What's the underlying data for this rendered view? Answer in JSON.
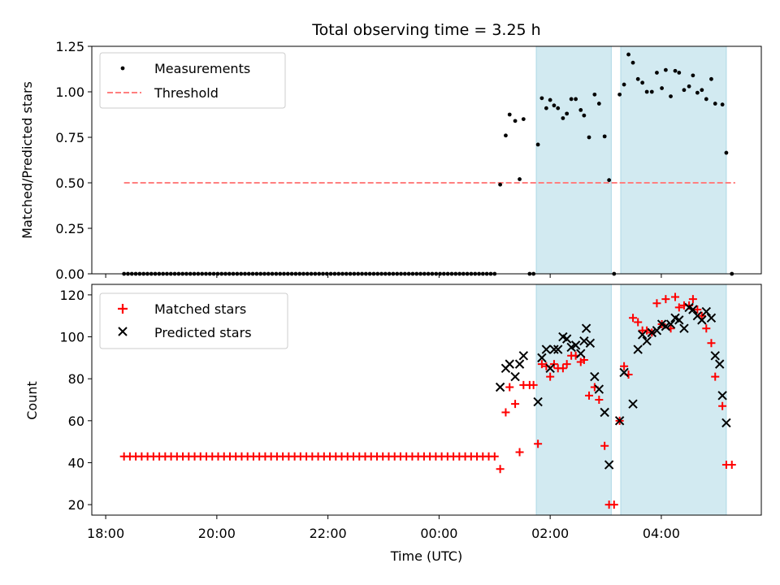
{
  "chart_data": {
    "type": "scatter",
    "title": "Total observing time = 3.25 h",
    "xlabel": "Time (UTC)",
    "x_unit": "hours relative to 00:00 UTC",
    "xlim": [
      -6.25,
      5.8
    ],
    "x_ticks": [
      {
        "value": -6,
        "label": "18:00"
      },
      {
        "value": -4,
        "label": "20:00"
      },
      {
        "value": -2,
        "label": "22:00"
      },
      {
        "value": 0,
        "label": "00:00"
      },
      {
        "value": 2,
        "label": "02:00"
      },
      {
        "value": 4,
        "label": "04:00"
      }
    ],
    "shaded_intervals": [
      [
        1.75,
        3.1
      ],
      [
        3.27,
        5.17
      ]
    ],
    "shade_color": "#add8e6",
    "top": {
      "ylabel": "Matched/Predicted stars",
      "ylim": [
        0,
        1.25
      ],
      "y_ticks": [
        0,
        0.25,
        0.5,
        0.75,
        1.0,
        1.25
      ],
      "y_tick_labels": [
        "0.00",
        "0.25",
        "0.50",
        "0.75",
        "1.00",
        "1.25"
      ],
      "legend": {
        "placement": "upper-left",
        "entries": [
          "Measurements",
          "Threshold"
        ]
      },
      "threshold": {
        "name": "Threshold",
        "y": 0.5,
        "x_range": [
          -5.67,
          5.33
        ],
        "color": "#ff7f7f"
      },
      "measurements": {
        "name": "Measurements",
        "color": "#000000",
        "zero_span": [
          -5.67,
          1.0
        ],
        "zero_count": 96,
        "points": [
          [
            1.1,
            0.49
          ],
          [
            1.2,
            0.76
          ],
          [
            1.27,
            0.875
          ],
          [
            1.37,
            0.84
          ],
          [
            1.45,
            0.52
          ],
          [
            1.52,
            0.85
          ],
          [
            1.63,
            0.0
          ],
          [
            1.7,
            0.0
          ],
          [
            1.78,
            0.71
          ],
          [
            1.85,
            0.965
          ],
          [
            1.93,
            0.91
          ],
          [
            2.0,
            0.955
          ],
          [
            2.07,
            0.925
          ],
          [
            2.14,
            0.91
          ],
          [
            2.23,
            0.855
          ],
          [
            2.3,
            0.88
          ],
          [
            2.38,
            0.96
          ],
          [
            2.46,
            0.96
          ],
          [
            2.55,
            0.9
          ],
          [
            2.61,
            0.87
          ],
          [
            2.7,
            0.75
          ],
          [
            2.8,
            0.985
          ],
          [
            2.88,
            0.935
          ],
          [
            2.98,
            0.755
          ],
          [
            3.06,
            0.515
          ],
          [
            3.15,
            0.0
          ],
          [
            3.25,
            0.985
          ],
          [
            3.33,
            1.04
          ],
          [
            3.41,
            1.205
          ],
          [
            3.49,
            1.16
          ],
          [
            3.58,
            1.07
          ],
          [
            3.66,
            1.05
          ],
          [
            3.74,
            1.0
          ],
          [
            3.83,
            1.0
          ],
          [
            3.92,
            1.105
          ],
          [
            4.01,
            1.02
          ],
          [
            4.08,
            1.12
          ],
          [
            4.17,
            0.975
          ],
          [
            4.25,
            1.115
          ],
          [
            4.32,
            1.105
          ],
          [
            4.41,
            1.01
          ],
          [
            4.5,
            1.03
          ],
          [
            4.57,
            1.09
          ],
          [
            4.65,
            0.995
          ],
          [
            4.73,
            1.01
          ],
          [
            4.81,
            0.96
          ],
          [
            4.9,
            1.07
          ],
          [
            4.97,
            0.935
          ],
          [
            5.1,
            0.93
          ],
          [
            5.17,
            0.665
          ],
          [
            5.27,
            0.0
          ]
        ]
      }
    },
    "bottom": {
      "ylabel": "Count",
      "ylim": [
        15,
        125
      ],
      "y_ticks": [
        20,
        40,
        60,
        80,
        100,
        120
      ],
      "y_tick_labels": [
        "20",
        "40",
        "60",
        "80",
        "100",
        "120"
      ],
      "legend": {
        "placement": "upper-left",
        "entries": [
          "Matched stars",
          "Predicted stars"
        ]
      },
      "matched": {
        "name": "Matched stars",
        "color": "#ff0000",
        "flat_value": 43,
        "flat_span": [
          -5.67,
          1.0
        ],
        "flat_count": 64,
        "points": [
          [
            1.1,
            37
          ],
          [
            1.2,
            64
          ],
          [
            1.27,
            76
          ],
          [
            1.37,
            68
          ],
          [
            1.45,
            45
          ],
          [
            1.52,
            77
          ],
          [
            1.63,
            77
          ],
          [
            1.7,
            77
          ],
          [
            1.78,
            49
          ],
          [
            1.85,
            87
          ],
          [
            1.93,
            86
          ],
          [
            2.0,
            81
          ],
          [
            2.07,
            87
          ],
          [
            2.14,
            85
          ],
          [
            2.23,
            85
          ],
          [
            2.3,
            87
          ],
          [
            2.38,
            91
          ],
          [
            2.46,
            91
          ],
          [
            2.55,
            88
          ],
          [
            2.61,
            89
          ],
          [
            2.7,
            72
          ],
          [
            2.8,
            76
          ],
          [
            2.88,
            70
          ],
          [
            2.98,
            48
          ],
          [
            3.06,
            20
          ],
          [
            3.15,
            20
          ],
          [
            3.25,
            60
          ],
          [
            3.33,
            86
          ],
          [
            3.41,
            82
          ],
          [
            3.49,
            109
          ],
          [
            3.58,
            107
          ],
          [
            3.66,
            103
          ],
          [
            3.74,
            103
          ],
          [
            3.83,
            102
          ],
          [
            3.92,
            116
          ],
          [
            4.01,
            106
          ],
          [
            4.08,
            118
          ],
          [
            4.17,
            104
          ],
          [
            4.25,
            119
          ],
          [
            4.32,
            114
          ],
          [
            4.41,
            115
          ],
          [
            4.5,
            115
          ],
          [
            4.57,
            118
          ],
          [
            4.65,
            113
          ],
          [
            4.73,
            110
          ],
          [
            4.81,
            104
          ],
          [
            4.9,
            97
          ],
          [
            4.97,
            81
          ],
          [
            5.1,
            67
          ],
          [
            5.17,
            39
          ],
          [
            5.27,
            39
          ]
        ]
      },
      "predicted": {
        "name": "Predicted stars",
        "color": "#000000",
        "points": [
          [
            1.1,
            76
          ],
          [
            1.2,
            85
          ],
          [
            1.27,
            87
          ],
          [
            1.37,
            81
          ],
          [
            1.45,
            87
          ],
          [
            1.52,
            91
          ],
          [
            1.78,
            69
          ],
          [
            1.85,
            90
          ],
          [
            1.93,
            94
          ],
          [
            2.0,
            85
          ],
          [
            2.07,
            94
          ],
          [
            2.14,
            94
          ],
          [
            2.23,
            100
          ],
          [
            2.3,
            99
          ],
          [
            2.38,
            95
          ],
          [
            2.46,
            96
          ],
          [
            2.55,
            92
          ],
          [
            2.61,
            98
          ],
          [
            2.65,
            104
          ],
          [
            2.72,
            97
          ],
          [
            2.8,
            81
          ],
          [
            2.88,
            75
          ],
          [
            2.98,
            64
          ],
          [
            3.06,
            39
          ],
          [
            3.25,
            60
          ],
          [
            3.33,
            83
          ],
          [
            3.49,
            68
          ],
          [
            3.58,
            94
          ],
          [
            3.66,
            101
          ],
          [
            3.74,
            98
          ],
          [
            3.83,
            102
          ],
          [
            3.92,
            103
          ],
          [
            4.01,
            106
          ],
          [
            4.08,
            105
          ],
          [
            4.17,
            106
          ],
          [
            4.25,
            109
          ],
          [
            4.32,
            108
          ],
          [
            4.41,
            104
          ],
          [
            4.5,
            114
          ],
          [
            4.57,
            113
          ],
          [
            4.65,
            110
          ],
          [
            4.73,
            108
          ],
          [
            4.81,
            112
          ],
          [
            4.9,
            109
          ],
          [
            4.97,
            91
          ],
          [
            5.05,
            87
          ],
          [
            5.1,
            72
          ],
          [
            5.17,
            59
          ]
        ]
      }
    }
  }
}
